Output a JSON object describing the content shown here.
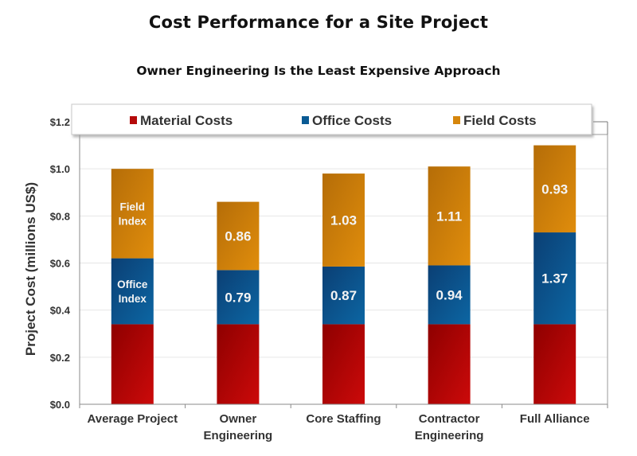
{
  "chart_data": {
    "type": "bar",
    "stacked": true,
    "title": "Cost Performance for a Site Project",
    "subtitle": "Owner Engineering Is the Least Expensive Approach",
    "xlabel": "",
    "ylabel": "Project Cost (millions US$)",
    "ylim": [
      0,
      1.2
    ],
    "yticks": [
      0.0,
      0.2,
      0.4,
      0.6,
      0.8,
      1.0,
      1.2
    ],
    "ytick_labels": [
      "$0.0",
      "$0.2",
      "$0.4",
      "$0.6",
      "$0.8",
      "$1.0",
      "$1.2"
    ],
    "grid": true,
    "legend_position": "top",
    "categories": [
      [
        "Average Project"
      ],
      [
        "Owner",
        "Engineering"
      ],
      [
        "Core Staffing"
      ],
      [
        "Contractor",
        "Engineering"
      ],
      [
        "Full Alliance"
      ]
    ],
    "series": [
      {
        "name": "Material Costs",
        "color": "#b50a0a",
        "values": [
          0.34,
          0.34,
          0.34,
          0.34,
          0.34
        ],
        "labels": [
          [],
          [],
          [],
          [],
          []
        ]
      },
      {
        "name": "Office Costs",
        "color": "#0a5a94",
        "values": [
          0.28,
          0.23,
          0.245,
          0.25,
          0.39
        ],
        "labels": [
          [
            "Office",
            "Index"
          ],
          [
            "0.79"
          ],
          [
            "0.87"
          ],
          [
            "0.94"
          ],
          [
            "1.37"
          ]
        ]
      },
      {
        "name": "Field Costs",
        "color": "#d6860c",
        "values": [
          0.38,
          0.29,
          0.395,
          0.42,
          0.37
        ],
        "labels": [
          [
            "Field",
            "Index"
          ],
          [
            "0.86"
          ],
          [
            "1.03"
          ],
          [
            "1.11"
          ],
          [
            "0.93"
          ]
        ]
      }
    ]
  }
}
